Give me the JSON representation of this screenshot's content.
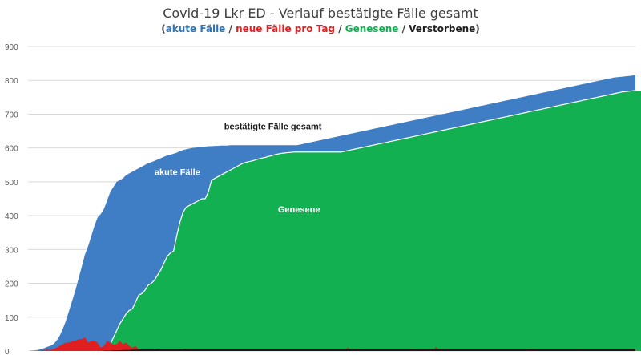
{
  "chart_data": {
    "type": "area",
    "title": "Covid-19 Lkr ED - Verlauf bestätigte Fälle gesamt",
    "subtitle_parts": [
      {
        "text": "(",
        "color": "#404040"
      },
      {
        "text": "akute Fälle",
        "color": "#2e75b6"
      },
      {
        "text": " / ",
        "color": "#404040"
      },
      {
        "text": "neue Fälle pro Tag",
        "color": "#e02020"
      },
      {
        "text": " / ",
        "color": "#404040"
      },
      {
        "text": "Genesene",
        "color": "#12b050"
      },
      {
        "text": " / ",
        "color": "#404040"
      },
      {
        "text": "Verstorbene",
        "color": "#202020"
      },
      {
        "text": ")",
        "color": "#404040"
      }
    ],
    "xlabel": "",
    "ylabel": "",
    "ylim": [
      0,
      900
    ],
    "yticks": [
      "0",
      "100",
      "200",
      "300",
      "400",
      "500",
      "600",
      "700",
      "800",
      "900"
    ],
    "grid": true,
    "annotations": [
      {
        "text": "bestätigte Fälle gesamt",
        "day": 62,
        "value": 655,
        "color": "#1a1a1a"
      },
      {
        "text": "akute Fälle",
        "day": 40,
        "value": 520,
        "color": "#ffffff"
      },
      {
        "text": "Genesene",
        "day": 79,
        "value": 410,
        "color": "#ffffff"
      }
    ],
    "series": [
      {
        "name": "bestätigte Fälle gesamt",
        "color": "#3f7ec4",
        "values": [
          0,
          1,
          2,
          3,
          5,
          8,
          12,
          15,
          20,
          30,
          45,
          65,
          90,
          120,
          150,
          180,
          215,
          250,
          285,
          310,
          340,
          370,
          395,
          405,
          420,
          445,
          470,
          485,
          500,
          505,
          510,
          520,
          525,
          530,
          535,
          540,
          545,
          550,
          555,
          558,
          562,
          566,
          570,
          574,
          578,
          580,
          583,
          586,
          590,
          594,
          596,
          598,
          600,
          601,
          602,
          603,
          604,
          605,
          605,
          606,
          606,
          607,
          607,
          607,
          608,
          608,
          608,
          608,
          608,
          608,
          608,
          608,
          608,
          608,
          608,
          608,
          608,
          608,
          608,
          608,
          608,
          608,
          608,
          608,
          608,
          608,
          610,
          612,
          614,
          616,
          618,
          620,
          622,
          624,
          626,
          628,
          630,
          632,
          634,
          636,
          638,
          640,
          642,
          644,
          646,
          648,
          650,
          652,
          654,
          656,
          658,
          660,
          662,
          664,
          666,
          668,
          670,
          672,
          674,
          676,
          678,
          680,
          682,
          684,
          686,
          688,
          690,
          692,
          694,
          696,
          698,
          700,
          702,
          704,
          706,
          708,
          710,
          712,
          714,
          716,
          718,
          720,
          722,
          724,
          726,
          728,
          730,
          732,
          734,
          736,
          738,
          740,
          742,
          744,
          746,
          748,
          750,
          752,
          754,
          756,
          758,
          760,
          762,
          764,
          766,
          768,
          770,
          772,
          774,
          776,
          778,
          780,
          782,
          784,
          786,
          788,
          790,
          792,
          794,
          796,
          798,
          800,
          802,
          804,
          806,
          808,
          809,
          810,
          811,
          812,
          813,
          814,
          815
        ]
      },
      {
        "name": "Genesene",
        "color": "#12b050",
        "values": [
          0,
          0,
          0,
          0,
          0,
          0,
          0,
          0,
          0,
          0,
          0,
          0,
          0,
          0,
          0,
          0,
          0,
          0,
          0,
          0,
          0,
          0,
          0,
          0,
          0,
          5,
          20,
          40,
          60,
          80,
          95,
          110,
          120,
          125,
          145,
          165,
          170,
          180,
          195,
          200,
          210,
          225,
          240,
          260,
          280,
          290,
          295,
          340,
          380,
          410,
          425,
          430,
          435,
          440,
          445,
          450,
          450,
          470,
          505,
          510,
          515,
          520,
          525,
          530,
          535,
          540,
          545,
          550,
          555,
          558,
          560,
          562,
          565,
          568,
          570,
          572,
          575,
          577,
          580,
          582,
          584,
          585,
          586,
          587,
          588,
          588,
          588,
          588,
          588,
          588,
          588,
          588,
          588,
          588,
          588,
          588,
          588,
          588,
          588,
          588,
          590,
          592,
          594,
          596,
          598,
          600,
          602,
          604,
          606,
          608,
          610,
          612,
          614,
          616,
          618,
          620,
          622,
          624,
          626,
          628,
          630,
          632,
          634,
          636,
          638,
          640,
          642,
          644,
          646,
          648,
          650,
          652,
          654,
          656,
          658,
          660,
          662,
          664,
          666,
          668,
          670,
          672,
          674,
          676,
          678,
          680,
          682,
          684,
          686,
          688,
          690,
          692,
          694,
          696,
          698,
          700,
          702,
          704,
          706,
          708,
          710,
          712,
          714,
          716,
          718,
          720,
          722,
          724,
          726,
          728,
          730,
          732,
          734,
          736,
          738,
          740,
          742,
          744,
          746,
          748,
          750,
          752,
          754,
          756,
          758,
          760,
          762,
          764,
          766,
          767,
          768,
          769,
          770,
          770,
          770,
          770,
          770,
          770,
          770
        ]
      },
      {
        "name": "neue Fälle pro Tag",
        "color": "#e02020",
        "values": [
          0,
          1,
          1,
          1,
          2,
          3,
          4,
          3,
          5,
          10,
          15,
          20,
          25,
          25,
          30,
          30,
          35,
          35,
          40,
          25,
          30,
          30,
          25,
          10,
          15,
          30,
          25,
          18,
          20,
          30,
          20,
          25,
          15,
          10,
          15,
          5,
          5,
          5,
          4,
          4,
          3,
          4,
          4,
          5,
          4,
          3,
          3,
          4,
          4,
          3,
          4,
          3,
          2,
          2,
          2,
          2,
          2,
          1,
          1,
          1,
          1,
          1,
          1,
          1,
          1,
          1,
          1,
          1,
          1,
          1,
          1,
          1,
          1,
          1,
          1,
          1,
          1,
          1,
          1,
          1,
          1,
          1,
          1,
          1,
          1,
          1,
          2,
          3,
          2,
          2,
          3,
          2,
          2,
          2,
          2,
          3,
          2,
          2,
          3,
          2,
          2,
          10,
          3,
          2,
          2,
          8,
          2,
          2,
          2,
          3,
          2,
          2,
          2,
          2,
          3,
          2,
          2,
          2,
          2,
          3,
          2,
          8,
          2,
          2,
          2,
          2,
          3,
          2,
          2,
          12,
          3,
          2,
          2,
          2,
          2,
          2,
          3,
          2,
          2,
          2,
          2,
          2,
          2,
          3,
          2,
          2,
          2,
          2,
          3,
          2,
          2,
          2,
          2,
          2,
          3,
          2,
          2,
          2,
          2,
          8,
          2,
          2,
          2,
          2,
          2,
          3,
          2,
          2,
          2,
          2,
          2,
          2,
          3,
          2,
          8,
          2,
          2,
          2,
          2,
          3,
          2,
          2,
          2,
          2,
          2,
          2,
          3,
          2,
          2,
          2,
          2,
          2,
          2
        ]
      },
      {
        "name": "Verstorbene",
        "color": "#1a1a1a",
        "values": [
          0,
          0,
          0,
          0,
          0,
          0,
          0,
          0,
          0,
          0,
          0,
          0,
          0,
          0,
          0,
          0,
          0,
          0,
          0,
          0,
          0,
          0,
          0,
          0,
          1,
          1,
          1,
          2,
          2,
          2,
          3,
          3,
          3,
          4,
          4,
          4,
          5,
          5,
          5,
          5,
          5,
          6,
          6,
          6,
          6,
          6,
          6,
          6,
          6,
          6,
          7,
          7,
          7,
          7,
          7,
          7,
          7,
          7,
          7,
          7,
          7,
          7,
          7,
          7,
          7,
          7,
          7,
          7,
          7,
          7,
          7,
          7,
          7,
          7,
          7,
          7,
          7,
          7,
          7,
          7,
          7,
          7,
          7,
          7,
          7,
          7,
          7,
          7,
          7,
          7,
          7,
          7,
          7,
          7,
          7,
          7,
          7,
          7,
          7,
          7,
          7,
          7,
          7,
          7,
          7,
          7,
          7,
          7,
          7,
          7,
          7,
          7,
          7,
          7,
          7,
          7,
          7,
          7,
          7,
          7,
          7,
          7,
          7,
          7,
          7,
          7,
          7,
          7,
          7,
          7,
          7,
          7,
          7,
          7,
          7,
          7,
          7,
          7,
          7,
          7,
          7,
          7,
          7,
          7,
          7,
          7,
          7,
          7,
          7,
          7,
          7,
          7,
          7,
          7,
          7,
          7,
          7,
          7,
          7,
          7,
          7,
          7,
          7,
          7,
          7,
          7,
          7,
          7,
          7,
          7,
          7,
          7,
          7,
          7,
          7,
          7,
          7,
          7,
          7,
          7,
          7,
          7,
          7,
          7,
          7,
          7,
          7,
          7,
          7,
          7,
          7,
          7,
          7
        ]
      }
    ]
  }
}
